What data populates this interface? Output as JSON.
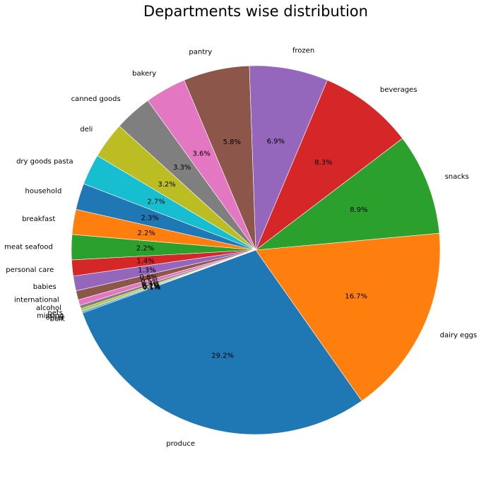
{
  "chart_data": {
    "type": "pie",
    "title": "Departments wise distribution",
    "categories": [
      "produce",
      "dairy eggs",
      "snacks",
      "beverages",
      "frozen",
      "pantry",
      "bakery",
      "canned goods",
      "deli",
      "dry goods pasta",
      "household",
      "breakfast",
      "meat seafood",
      "personal care",
      "babies",
      "international",
      "alcohol",
      "pets",
      "missing",
      "other",
      "bulk"
    ],
    "values": [
      29.2,
      16.7,
      8.9,
      8.3,
      6.9,
      5.8,
      3.6,
      3.3,
      3.2,
      2.7,
      2.3,
      2.2,
      2.2,
      1.4,
      1.3,
      0.8,
      0.5,
      0.3,
      0.2,
      0.1,
      0.1
    ],
    "labels_pct": [
      "29.2%",
      "16.7%",
      "8.9%",
      "8.3%",
      "6.9%",
      "5.8%",
      "3.6%",
      "3.3%",
      "3.2%",
      "2.7%",
      "2.3%",
      "2.2%",
      "2.2%",
      "1.4%",
      "1.3%",
      "0.8%",
      "0.5%",
      "0.3%",
      "0.2%",
      "0.1%",
      "0.1%"
    ],
    "colors": [
      "#1f77b4",
      "#ff7f0e",
      "#2ca02c",
      "#d62728",
      "#9467bd",
      "#8c564b",
      "#e377c2",
      "#7f7f7f",
      "#bcbd22",
      "#17becf",
      "#1f77b4",
      "#ff7f0e",
      "#2ca02c",
      "#d62728",
      "#9467bd",
      "#8c564b",
      "#e377c2",
      "#7f7f7f",
      "#bcbd22",
      "#17becf",
      "#1f77b4"
    ],
    "start_angle_deg": 200,
    "direction": "counterclockwise"
  }
}
